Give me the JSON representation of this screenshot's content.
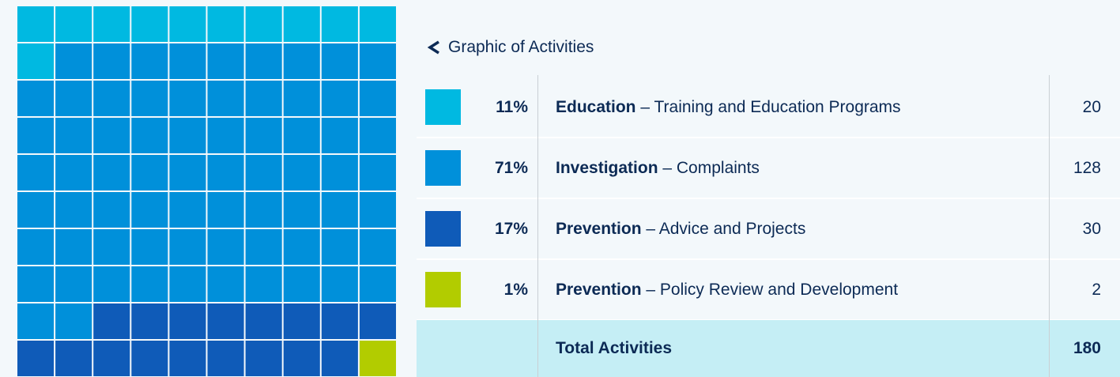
{
  "chart_data": {
    "type": "waffle",
    "title": "Graphic of Activities",
    "categories": [
      "Education",
      "Investigation",
      "Prevention",
      "Prevention"
    ],
    "descriptions": [
      "– Training and Education Programs",
      "– Complaints",
      "– Advice and Projects",
      "– Policy Review and Development"
    ],
    "values": [
      11,
      71,
      17,
      1
    ],
    "value_labels": [
      "11%",
      "71%",
      "17%",
      "1%"
    ],
    "counts": [
      20,
      128,
      30,
      2
    ],
    "colors": [
      "#00b9e1",
      "#0090da",
      "#0f5bb8",
      "#b2cc00"
    ],
    "total_label": "Total Activities",
    "total": 180
  }
}
